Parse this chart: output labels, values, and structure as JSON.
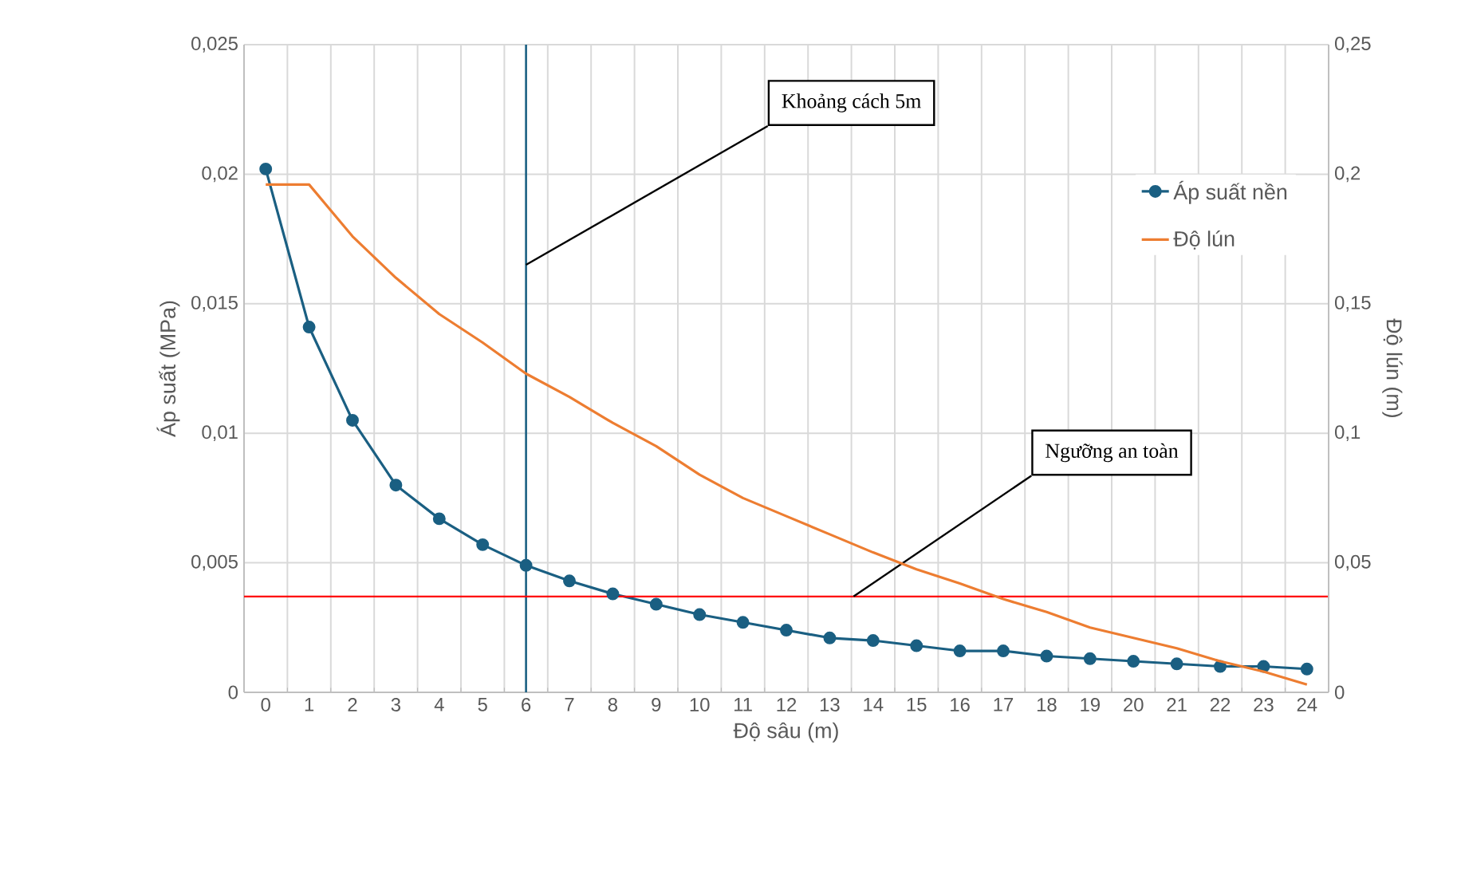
{
  "chart_data": {
    "type": "line",
    "xlabel": "Độ sâu (m)",
    "ylabel": "Áp suất (MPa)",
    "y2label": "Độ lún (m)",
    "categories": [
      "0",
      "1",
      "2",
      "3",
      "4",
      "5",
      "6",
      "7",
      "8",
      "9",
      "10",
      "11",
      "12",
      "13",
      "14",
      "15",
      "16",
      "17",
      "18",
      "19",
      "20",
      "21",
      "22",
      "23",
      "24"
    ],
    "series": [
      {
        "name": "Áp suất nền",
        "color": "#1a5f82",
        "marker": "circle",
        "values": [
          0.0202,
          0.0141,
          0.0105,
          0.008,
          0.0067,
          0.0057,
          0.0049,
          0.0043,
          0.0038,
          0.0034,
          0.003,
          0.0027,
          0.0024,
          0.0021,
          0.002,
          0.0018,
          0.0016,
          0.0016,
          0.0014,
          0.0013,
          0.0012,
          0.0011,
          0.001,
          0.001,
          0.0009
        ]
      },
      {
        "name": "Độ lún",
        "color": "#ed7d31",
        "axis": "y2",
        "values": [
          0.196,
          0.196,
          0.176,
          0.16,
          0.146,
          0.135,
          0.123,
          0.114,
          0.104,
          0.095,
          0.084,
          0.075,
          0.068,
          0.061,
          0.054,
          0.0475,
          0.042,
          0.036,
          0.031,
          0.025,
          0.021,
          0.017,
          0.012,
          0.008,
          0.003
        ]
      }
    ],
    "ylim": [
      0,
      0.025
    ],
    "yticks": [
      0,
      {
        "value": 0.005,
        "label": "0,005"
      },
      {
        "value": 0.01,
        "label": "0,01"
      },
      {
        "value": 0.015,
        "label": "0,015"
      },
      {
        "value": 0.02,
        "label": "0,02"
      },
      {
        "value": 0.025,
        "label": "0,025"
      }
    ],
    "y2lim": [
      0,
      0.25
    ],
    "y2ticks": [
      0,
      {
        "value": 0.05,
        "label": "0,05"
      },
      {
        "value": 0.1,
        "label": "0,1"
      },
      {
        "value": 0.15,
        "label": "0,15"
      },
      {
        "value": 0.2,
        "label": "0,2"
      },
      {
        "value": 0.25,
        "label": "0,25"
      }
    ],
    "ref_lines": [
      {
        "axis": "x",
        "value": "6",
        "label": "Khoảng cách 5m",
        "color": "#1a5f82"
      },
      {
        "axis": "y",
        "value": 0.0037,
        "label": "Ngưỡng an toàn",
        "color": "#ff0000"
      }
    ],
    "grid": true,
    "legend": "top right",
    "line_style": "solid"
  }
}
